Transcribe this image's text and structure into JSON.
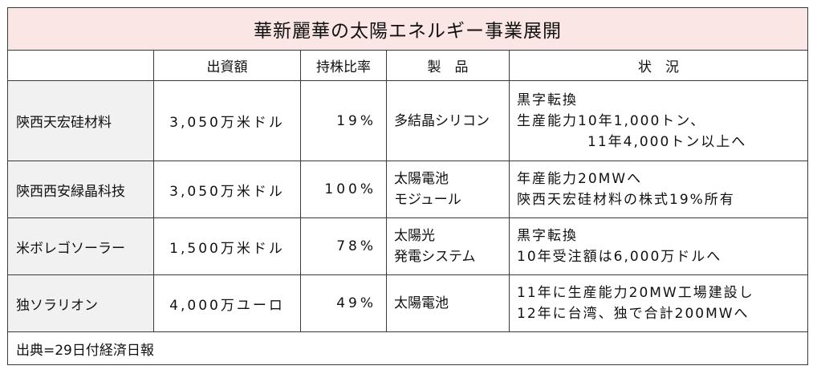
{
  "title": "華新麗華の太陽エネルギー事業展開",
  "headers": {
    "company": "",
    "investment": "出資額",
    "ratio": "持株比率",
    "product": "製　品",
    "status": "状　況"
  },
  "rows": [
    {
      "company": "陝西天宏硅材料",
      "investment": "3,050万米ドル",
      "ratio": "19%",
      "product": [
        "多結晶シリコン"
      ],
      "status": [
        "黒字転換",
        "生産能力10年1,000トン、",
        "11年4,000トン以上へ"
      ]
    },
    {
      "company": "陝西西安緑晶科技",
      "investment": "3,050万米ドル",
      "ratio": "100%",
      "product": [
        "太陽電池",
        "モジュール"
      ],
      "status": [
        "年産能力20MWへ",
        "陝西天宏硅材料の株式19%所有"
      ]
    },
    {
      "company": "米ボレゴソーラー",
      "investment": "1,500万米ドル",
      "ratio": "78%",
      "product": [
        "太陽光",
        "発電システム"
      ],
      "status": [
        "黒字転換",
        "10年受注額は6,000万ドルへ"
      ]
    },
    {
      "company": "独ソラリオン",
      "investment": "4,000万ユーロ",
      "ratio": "49%",
      "product": [
        "太陽電池"
      ],
      "status": [
        "11年に生産能力20MW工場建設し",
        "12年に台湾、独で合計200MWへ"
      ]
    }
  ],
  "source": "出典=29日付経済日報"
}
